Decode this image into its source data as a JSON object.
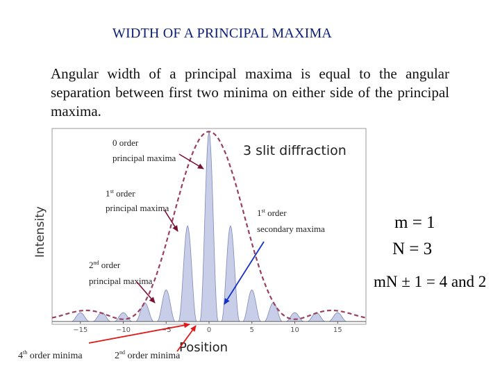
{
  "slide": {
    "title": "WIDTH OF A PRINCIPAL MAXIMA",
    "body": "Angular width of a principal maxima is equal to the angular separation between first two minima on either side of the principal maxima."
  },
  "chart_data": {
    "type": "line",
    "title": "3 slit diffraction",
    "xlabel": "Position",
    "ylabel": "Intensity",
    "x_ticks": [
      -15,
      -10,
      -5,
      0,
      5,
      10,
      15
    ],
    "x_tick_labels": [
      "−15",
      "−10",
      "−5",
      "0",
      "5",
      "10",
      "15"
    ],
    "xlim": [
      -18.3,
      18.3
    ],
    "ylim": [
      0,
      1
    ],
    "grid": false,
    "series": [
      {
        "values": [
          {
            "x": -15,
            "y": 0.047
          },
          {
            "x": -12.5,
            "y": 0.047
          },
          {
            "x": -10,
            "y": 0.047
          },
          {
            "x": -7.5,
            "y": 0.1
          },
          {
            "x": -5,
            "y": 0.167
          },
          {
            "x": -2.5,
            "y": 0.505
          },
          {
            "x": 0,
            "y": 1.0
          },
          {
            "x": 2.5,
            "y": 0.505
          },
          {
            "x": 5,
            "y": 0.167
          },
          {
            "x": 7.5,
            "y": 0.1
          },
          {
            "x": 10,
            "y": 0.047
          },
          {
            "x": 12.5,
            "y": 0.047
          },
          {
            "x": 15,
            "y": 0.047
          }
        ]
      }
    ],
    "colors": {
      "envelope": "#9a3f60",
      "peak_fill": "#c8cee8",
      "peak_stroke": "#7c88b8"
    }
  },
  "annotations": [
    {
      "line1": "0 order",
      "line2": "principal   maxima"
    },
    {
      "line1": "1",
      "sup": "st",
      "line1_rest": " order",
      "line2": "principal   maxima"
    },
    {
      "line1": "2",
      "sup": "nd",
      "line1_rest": " order",
      "line2": "principal   maxima"
    },
    {
      "line1": "1",
      "sup": "st",
      "line1_rest": " order",
      "line2": "secondary   maxima"
    }
  ],
  "minima_labels": [
    {
      "num": "4",
      "sup": "th",
      "rest": " order  minima"
    },
    {
      "num": "2",
      "sup": "nd",
      "rest": " order  minima"
    }
  ],
  "equations": {
    "m": "m = 1",
    "N": "N = 3",
    "result": "mN ± 1 = 4 and 2"
  },
  "arrow_colors": {
    "dark": "#7a1030",
    "blue": "#1530c8",
    "red": "#e01818"
  }
}
